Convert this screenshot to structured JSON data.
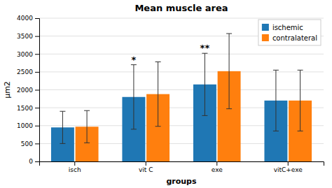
{
  "chart_data": {
    "type": "bar",
    "title": "Mean muscle area",
    "xlabel": "groups",
    "ylabel": "μm2",
    "categories": [
      "isch",
      "vit C",
      "exe",
      "vitC+exe"
    ],
    "series": [
      {
        "name": "ischemic",
        "values": [
          950,
          1800,
          2150,
          1700
        ],
        "errors": [
          450,
          900,
          870,
          850
        ],
        "significance": [
          null,
          "*",
          "**",
          null
        ]
      },
      {
        "name": "contralateral",
        "values": [
          970,
          1880,
          2520,
          1700
        ],
        "errors": [
          450,
          900,
          1050,
          850
        ]
      }
    ],
    "ylim": [
      0,
      4000
    ],
    "yticks": [
      0,
      500,
      1000,
      1500,
      2000,
      2500,
      3000,
      3500,
      4000
    ],
    "grid": true,
    "legend": "upper right"
  }
}
